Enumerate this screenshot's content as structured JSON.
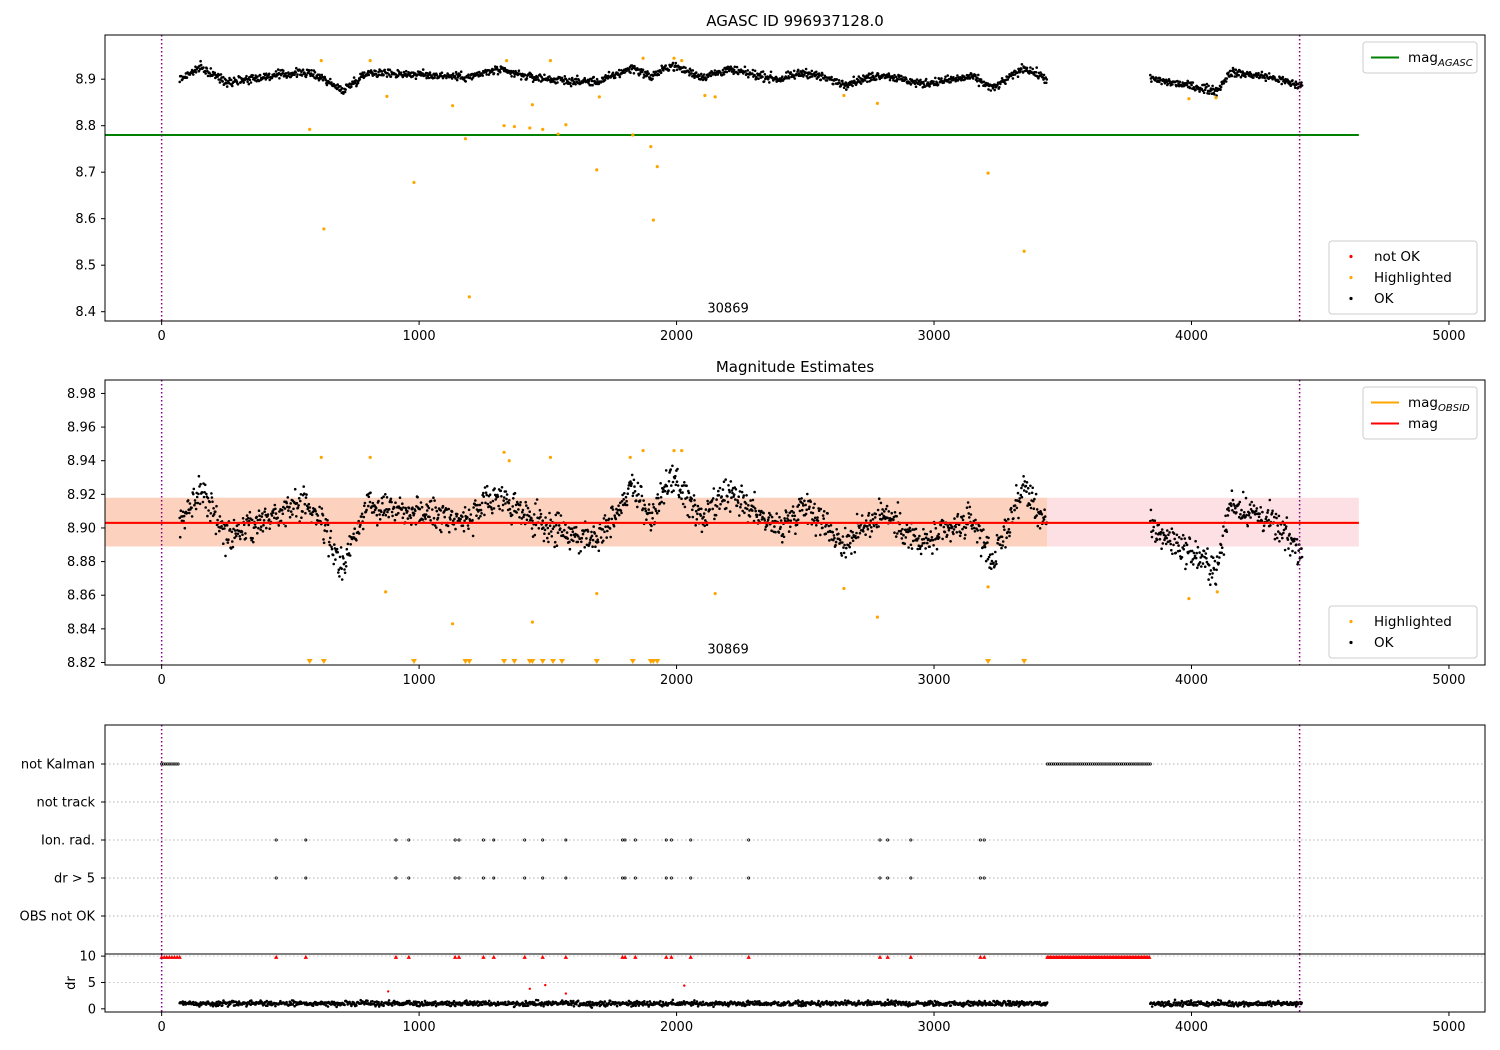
{
  "chart_data": [
    {
      "id": "agasc",
      "type": "scatter",
      "title": "AGASC ID 996937128.0",
      "xlim": [
        -220,
        5140
      ],
      "ylim": [
        8.38,
        8.995
      ],
      "x_ticks": [
        0,
        1000,
        2000,
        3000,
        4000,
        5000
      ],
      "y_ticks": [
        8.4,
        8.5,
        8.6,
        8.7,
        8.8,
        8.9
      ],
      "annotation": {
        "text": "30869",
        "x": 2200,
        "y": 8.405
      },
      "vlines": [
        0,
        4420
      ],
      "hlines": [
        {
          "name": "mag_AGASC",
          "y": 8.78,
          "x_range": [
            -220,
            4650
          ],
          "color": "#008000"
        }
      ],
      "series": [
        {
          "name": "not OK",
          "color": "#ff0000",
          "points": []
        },
        {
          "name": "Highlighted",
          "color": "#ffa500",
          "points": [
            [
              575,
              8.792
            ],
            [
              620,
              8.94
            ],
            [
              630,
              8.578
            ],
            [
              810,
              8.94
            ],
            [
              875,
              8.863
            ],
            [
              980,
              8.678
            ],
            [
              1130,
              8.843
            ],
            [
              1180,
              8.772
            ],
            [
              1195,
              8.432
            ],
            [
              1330,
              8.8
            ],
            [
              1340,
              8.94
            ],
            [
              1370,
              8.798
            ],
            [
              1430,
              8.795
            ],
            [
              1440,
              8.845
            ],
            [
              1480,
              8.792
            ],
            [
              1510,
              8.94
            ],
            [
              1540,
              8.782
            ],
            [
              1570,
              8.802
            ],
            [
              1690,
              8.705
            ],
            [
              1700,
              8.862
            ],
            [
              1830,
              8.78
            ],
            [
              1870,
              8.945
            ],
            [
              1900,
              8.755
            ],
            [
              1910,
              8.597
            ],
            [
              1925,
              8.712
            ],
            [
              1990,
              8.945
            ],
            [
              2020,
              8.94
            ],
            [
              2110,
              8.865
            ],
            [
              2150,
              8.862
            ],
            [
              2650,
              8.865
            ],
            [
              2780,
              8.848
            ],
            [
              3210,
              8.698
            ],
            [
              3350,
              8.53
            ],
            [
              3990,
              8.858
            ],
            [
              4095,
              8.86
            ]
          ]
        },
        {
          "name": "OK",
          "color": "#000000",
          "trend": [
            [
              70,
              8.9
            ],
            [
              150,
              8.925
            ],
            [
              250,
              8.895
            ],
            [
              400,
              8.905
            ],
            [
              550,
              8.915
            ],
            [
              620,
              8.905
            ],
            [
              700,
              8.875
            ],
            [
              800,
              8.915
            ],
            [
              1000,
              8.91
            ],
            [
              1200,
              8.905
            ],
            [
              1300,
              8.92
            ],
            [
              1430,
              8.905
            ],
            [
              1600,
              8.895
            ],
            [
              1700,
              8.895
            ],
            [
              1830,
              8.925
            ],
            [
              1900,
              8.905
            ],
            [
              1980,
              8.93
            ],
            [
              2100,
              8.905
            ],
            [
              2200,
              8.92
            ],
            [
              2400,
              8.9
            ],
            [
              2500,
              8.915
            ],
            [
              2650,
              8.89
            ],
            [
              2800,
              8.91
            ],
            [
              2950,
              8.89
            ],
            [
              3150,
              8.905
            ],
            [
              3230,
              8.88
            ],
            [
              3350,
              8.925
            ],
            [
              3440,
              8.9
            ]
          ],
          "trend2": [
            [
              3840,
              8.9
            ],
            [
              3950,
              8.89
            ],
            [
              4100,
              8.875
            ],
            [
              4150,
              8.915
            ],
            [
              4300,
              8.905
            ],
            [
              4430,
              8.885
            ]
          ]
        }
      ],
      "legends": [
        {
          "position": "upper-right",
          "entries": [
            {
              "label": "mag",
              "subscript": "AGASC",
              "kind": "line",
              "color": "#008000"
            }
          ]
        },
        {
          "position": "lower-right",
          "entries": [
            {
              "label": "not OK",
              "kind": "dot",
              "color": "#ff0000"
            },
            {
              "label": "Highlighted",
              "kind": "dot",
              "color": "#ffa500"
            },
            {
              "label": "OK",
              "kind": "dot",
              "color": "#000000"
            }
          ]
        }
      ]
    },
    {
      "id": "mag-estimates",
      "type": "scatter",
      "title": "Magnitude Estimates",
      "xlim": [
        -220,
        5140
      ],
      "ylim": [
        8.8185,
        8.988
      ],
      "x_ticks": [
        0,
        1000,
        2000,
        3000,
        4000,
        5000
      ],
      "y_ticks": [
        8.82,
        8.84,
        8.86,
        8.88,
        8.9,
        8.92,
        8.94,
        8.96,
        8.98
      ],
      "y_tick_labels": [
        "8.82",
        "8.84",
        "8.86",
        "8.88",
        "8.90",
        "8.92",
        "8.94",
        "8.96",
        "8.98"
      ],
      "annotation": {
        "text": "30869",
        "x": 2200,
        "y": 8.827
      },
      "vlines": [
        0,
        4420
      ],
      "hlines": [
        {
          "name": "mag_OBSID",
          "y": 8.903,
          "x_range": [
            -220,
            4650
          ],
          "color": "#ffa500"
        },
        {
          "name": "mag",
          "y": 8.903,
          "x_range": [
            -220,
            4650
          ],
          "color": "#ff0000"
        }
      ],
      "bands": [
        {
          "y_range": [
            8.889,
            8.918
          ],
          "x_range": [
            -220,
            3440
          ],
          "color": "#fcd2bf"
        },
        {
          "y_range": [
            8.889,
            8.918
          ],
          "x_range": [
            3440,
            4650
          ],
          "color": "#fde0e4"
        }
      ],
      "series": [
        {
          "name": "Highlighted",
          "color": "#ffa500",
          "points": [
            [
              620,
              8.942
            ],
            [
              810,
              8.942
            ],
            [
              870,
              8.862
            ],
            [
              1130,
              8.843
            ],
            [
              1330,
              8.945
            ],
            [
              1350,
              8.94
            ],
            [
              1440,
              8.844
            ],
            [
              1510,
              8.942
            ],
            [
              1690,
              8.861
            ],
            [
              1820,
              8.942
            ],
            [
              1870,
              8.946
            ],
            [
              1990,
              8.946
            ],
            [
              2020,
              8.946
            ],
            [
              2150,
              8.861
            ],
            [
              2650,
              8.864
            ],
            [
              2780,
              8.847
            ],
            [
              3210,
              8.865
            ],
            [
              3990,
              8.858
            ],
            [
              4100,
              8.862
            ]
          ]
        },
        {
          "name": "Highlighted-below-range",
          "color": "#ffa500",
          "x": [
            575,
            630,
            980,
            1180,
            1195,
            1330,
            1370,
            1430,
            1440,
            1480,
            1520,
            1555,
            1690,
            1830,
            1900,
            1910,
            1925,
            3210,
            3350
          ]
        },
        {
          "name": "OK",
          "color": "#000000",
          "trend": [
            [
              70,
              8.9
            ],
            [
              150,
              8.925
            ],
            [
              250,
              8.895
            ],
            [
              400,
              8.905
            ],
            [
              550,
              8.915
            ],
            [
              620,
              8.905
            ],
            [
              700,
              8.875
            ],
            [
              800,
              8.915
            ],
            [
              1000,
              8.91
            ],
            [
              1200,
              8.905
            ],
            [
              1300,
              8.92
            ],
            [
              1430,
              8.905
            ],
            [
              1600,
              8.895
            ],
            [
              1700,
              8.895
            ],
            [
              1830,
              8.925
            ],
            [
              1900,
              8.905
            ],
            [
              1980,
              8.93
            ],
            [
              2100,
              8.905
            ],
            [
              2200,
              8.92
            ],
            [
              2400,
              8.9
            ],
            [
              2500,
              8.915
            ],
            [
              2650,
              8.89
            ],
            [
              2800,
              8.91
            ],
            [
              2950,
              8.89
            ],
            [
              3150,
              8.905
            ],
            [
              3230,
              8.88
            ],
            [
              3350,
              8.925
            ],
            [
              3440,
              8.9
            ]
          ],
          "trend2": [
            [
              3840,
              8.9
            ],
            [
              3950,
              8.89
            ],
            [
              4100,
              8.875
            ],
            [
              4150,
              8.915
            ],
            [
              4300,
              8.905
            ],
            [
              4430,
              8.885
            ]
          ]
        }
      ],
      "legends": [
        {
          "position": "upper-right",
          "entries": [
            {
              "label": "mag",
              "subscript": "OBSID",
              "kind": "line",
              "color": "#ffa500"
            },
            {
              "label": "mag",
              "kind": "line",
              "color": "#ff0000"
            }
          ]
        },
        {
          "position": "lower-right",
          "entries": [
            {
              "label": "Highlighted",
              "kind": "dot",
              "color": "#ffa500"
            },
            {
              "label": "OK",
              "kind": "dot",
              "color": "#000000"
            }
          ]
        }
      ]
    },
    {
      "id": "flags",
      "type": "scatter",
      "xlim": [
        -220,
        5140
      ],
      "x_ticks": [
        0,
        1000,
        2000,
        3000,
        4000,
        5000
      ],
      "vlines": [
        0,
        4420
      ],
      "rows": [
        "not Kalman",
        "not track",
        "Ion. rad.",
        "dr > 5",
        "OBS not OK"
      ],
      "flag_x": {
        "not Kalman": {
          "ranges": [
            [
              0,
              70
            ],
            [
              3440,
              3840
            ]
          ]
        },
        "not track": {
          "ranges": []
        },
        "Ion. rad.": {
          "x": [
            445,
            560,
            910,
            960,
            1140,
            1155,
            1250,
            1290,
            1410,
            1480,
            1570,
            1790,
            1800,
            1840,
            1960,
            1980,
            2055,
            2280,
            2790,
            2820,
            2910,
            3180,
            3195
          ]
        },
        "dr > 5": {
          "x": [
            445,
            560,
            910,
            960,
            1140,
            1155,
            1250,
            1290,
            1410,
            1480,
            1570,
            1790,
            1800,
            1840,
            1960,
            1980,
            2055,
            2280,
            2790,
            2820,
            2910,
            3180,
            3195
          ]
        },
        "OBS not OK": {
          "x": []
        }
      }
    },
    {
      "id": "dr",
      "type": "scatter",
      "ylabel": "dr",
      "xlim": [
        -220,
        5140
      ],
      "ylim": [
        -0.6,
        10.4
      ],
      "x_ticks": [
        0,
        1000,
        2000,
        3000,
        4000,
        5000
      ],
      "y_ticks": [
        0,
        5,
        10
      ],
      "vlines": [
        0,
        4420
      ],
      "series": [
        {
          "name": "dr > 5 (clipped at 10)",
          "color": "#ff0000",
          "marker": "triangle",
          "x": [
            0,
            10,
            20,
            30,
            40,
            50,
            60,
            70,
            445,
            560,
            910,
            960,
            1140,
            1155,
            1250,
            1290,
            1410,
            1480,
            1570,
            1790,
            1800,
            1840,
            1960,
            1980,
            2055,
            2280,
            2790,
            2820,
            2910,
            3180,
            3195
          ]
        },
        {
          "name": "dr > 5 block (clipped at 10)",
          "color": "#ff0000",
          "marker": "triangle",
          "range": [
            3440,
            3840
          ]
        },
        {
          "name": "outliers",
          "color": "#ff0000",
          "points": [
            [
              880,
              3.3
            ],
            [
              1430,
              3.8
            ],
            [
              1490,
              4.5
            ],
            [
              1570,
              2.9
            ],
            [
              2030,
              4.4
            ]
          ]
        },
        {
          "name": "OK",
          "color": "#000000",
          "segments": [
            [
              70,
              3440
            ],
            [
              3840,
              4430
            ]
          ],
          "typical": 1.0
        }
      ]
    }
  ]
}
